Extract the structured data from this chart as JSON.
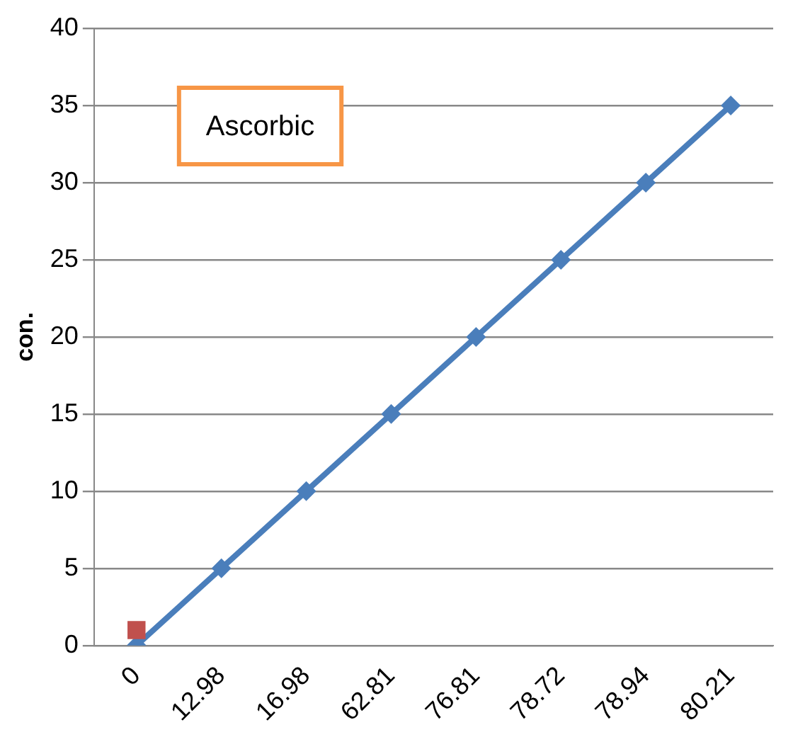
{
  "chart_data": {
    "type": "line",
    "ylabel": "con.",
    "categories": [
      "0",
      "12.98",
      "16.98",
      "62.81",
      "76.81",
      "78.72",
      "78.94",
      "80.21"
    ],
    "series": [
      {
        "color": "#4a7ebb",
        "values": [
          0,
          5,
          10,
          15,
          20,
          25,
          30,
          35
        ],
        "marker": "diamond"
      },
      {
        "type": "scatter",
        "color": "#c0504d",
        "x": [
          "0"
        ],
        "values": [
          1
        ],
        "marker": "square"
      }
    ],
    "ylim": [
      0,
      40
    ],
    "yticks": [
      0,
      5,
      10,
      15,
      20,
      25,
      30,
      35,
      40
    ],
    "grid": "y",
    "legend": false,
    "annotations": [
      "Ascorbic"
    ]
  }
}
